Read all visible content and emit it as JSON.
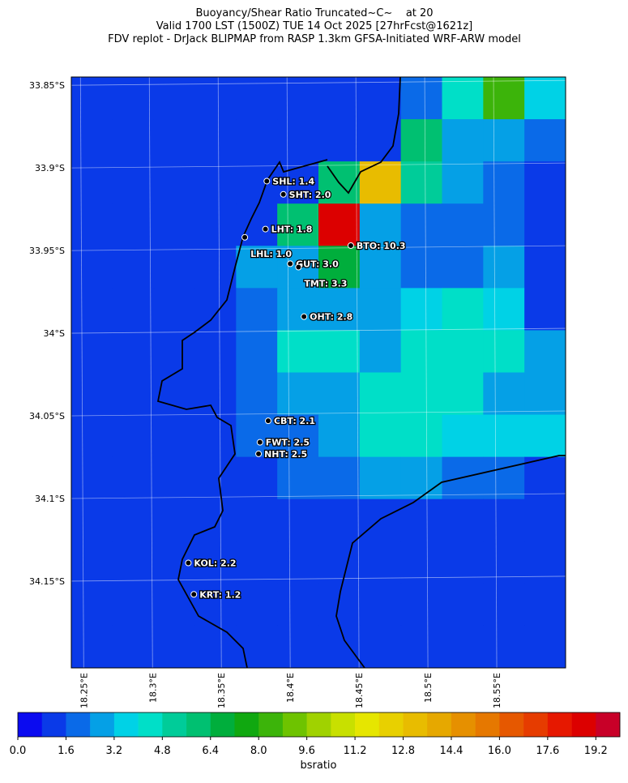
{
  "title": [
    "Buoyancy/Shear Ratio Truncated~C~    at 20",
    "Valid 1700 LST (1500Z) TUE 14 Oct 2025 [27hrFcst@1621z]",
    "FDV replot - DrJack BLIPMAP from RASP 1.3km GFSA-Initiated WRF-ARW model"
  ],
  "map": {
    "xlim": [
      18.241,
      18.6
    ],
    "ylim": [
      -34.2025,
      -33.845
    ],
    "xticks": [
      {
        "value": 18.25,
        "label": "18.25°E"
      },
      {
        "value": 18.3,
        "label": "18.3°E"
      },
      {
        "value": 18.35,
        "label": "18.35°E"
      },
      {
        "value": 18.4,
        "label": "18.4°E"
      },
      {
        "value": 18.45,
        "label": "18.45°E"
      },
      {
        "value": 18.5,
        "label": "18.5°E"
      },
      {
        "value": 18.55,
        "label": "18.55°E"
      }
    ],
    "yticks": [
      {
        "value": -33.85,
        "label": "33.85°S"
      },
      {
        "value": -33.9,
        "label": "33.9°S"
      },
      {
        "value": -33.95,
        "label": "33.95°S"
      },
      {
        "value": -34,
        "label": "34°S"
      },
      {
        "value": -34.05,
        "label": "34.05°S"
      },
      {
        "value": -34.1,
        "label": "34.1°S"
      },
      {
        "value": -34.15,
        "label": "34.15°S"
      }
    ],
    "field": [
      [
        1,
        1,
        1,
        1,
        1,
        1,
        1,
        1,
        2,
        4.5,
        8,
        3.5
      ],
      [
        1,
        1,
        1,
        1,
        1,
        1,
        1,
        1,
        6,
        3,
        2.5,
        1.8
      ],
      [
        1,
        1,
        1,
        1,
        1,
        1,
        6,
        13,
        5,
        2.5,
        2,
        1.5
      ],
      [
        1,
        1,
        1,
        1,
        1.5,
        6,
        19,
        3,
        2,
        2,
        2,
        1.2
      ],
      [
        1,
        1,
        1,
        1,
        2.5,
        3,
        7,
        3,
        2,
        2,
        2.5,
        1.2
      ],
      [
        1,
        1,
        1,
        1,
        2,
        2.5,
        3,
        3,
        3.5,
        4,
        3.5,
        1.5
      ],
      [
        1,
        1,
        1,
        1.5,
        2,
        4,
        4,
        3,
        4,
        4,
        4,
        2.5
      ],
      [
        1,
        1,
        1.2,
        1.5,
        2,
        2.5,
        3,
        4,
        4,
        4.5,
        3,
        2.5
      ],
      [
        1,
        1,
        1,
        1.5,
        2,
        2,
        3,
        4,
        4,
        3.5,
        3.5,
        3.5
      ],
      [
        1,
        1,
        1,
        1.5,
        1.5,
        2,
        2,
        2.5,
        2.5,
        2,
        2,
        1.2
      ],
      [
        1,
        1,
        1,
        1,
        1.5,
        1.5,
        1.5,
        1.2,
        1,
        1,
        1,
        1
      ],
      [
        1,
        1,
        1.5,
        1.5,
        1.5,
        1.2,
        1,
        1,
        1,
        1,
        1,
        1
      ],
      [
        1,
        1,
        1.2,
        1.5,
        1.5,
        1.2,
        1,
        1,
        1,
        1,
        1,
        1
      ],
      [
        1,
        1,
        1,
        1.2,
        1.2,
        1,
        1,
        1,
        1,
        1,
        1,
        1
      ]
    ],
    "stations": [
      {
        "label": "SHL: 1.4",
        "lon": 18.383,
        "lat": -33.908
      },
      {
        "label": "SHT: 2.0",
        "lon": 18.395,
        "lat": -33.916
      },
      {
        "label": "LHT: 1.8",
        "lon": 18.382,
        "lat": -33.937
      },
      {
        "label": "LHL: 1.0",
        "lon": 18.367,
        "lat": -33.942
      },
      {
        "label": "BTO: 10.3",
        "lon": 18.444,
        "lat": -33.947
      },
      {
        "label": "GUT: 3.0",
        "lon": 18.4,
        "lat": -33.958
      },
      {
        "label": "TMT: 3.3",
        "lon": 18.406,
        "lat": -33.96
      },
      {
        "label": "OHT: 2.8",
        "lon": 18.41,
        "lat": -33.99
      },
      {
        "label": "CBT: 2.1",
        "lon": 18.384,
        "lat": -34.053
      },
      {
        "label": "FWT: 2.5",
        "lon": 18.378,
        "lat": -34.066
      },
      {
        "label": "NHT: 2.5",
        "lon": 18.377,
        "lat": -34.073
      },
      {
        "label": "KOL: 2.2",
        "lon": 18.326,
        "lat": -34.139
      },
      {
        "label": "KRT: 1.2",
        "lon": 18.33,
        "lat": -34.158
      }
    ]
  },
  "colorbar": {
    "label": "bsratio",
    "lim": [
      0,
      20
    ],
    "colors": [
      "#0b0bf0",
      "#0a3ae8",
      "#0a6ae8",
      "#05a0e6",
      "#00d2e6",
      "#00dfc8",
      "#00cc99",
      "#00c071",
      "#00ae3c",
      "#10a810",
      "#3cb40a",
      "#6ec300",
      "#a0d200",
      "#c8e000",
      "#e6e600",
      "#e8d000",
      "#e8bc00",
      "#e6a800",
      "#e69000",
      "#e67800",
      "#e65800",
      "#e63c00",
      "#e61800",
      "#dc0000",
      "#c80028"
    ],
    "ticks": [
      {
        "value": 0,
        "label": "0.0"
      },
      1.6,
      3.2,
      4.8,
      6.4,
      {
        "value": 8,
        "label": "8.0"
      },
      9.6,
      11.2,
      12.8,
      14.4,
      {
        "value": 16,
        "label": "16.0"
      },
      17.6,
      19.2
    ]
  }
}
